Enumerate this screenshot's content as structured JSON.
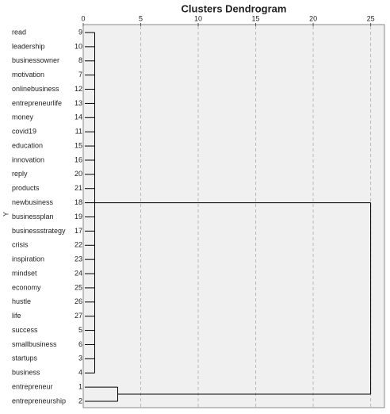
{
  "chart_data": {
    "type": "dendrogram",
    "title": "Clusters Dendrogram",
    "y_label": "Y",
    "labels": [
      "read",
      "leadership",
      "businessowner",
      "motivation",
      "onlinebusiness",
      "entrepreneurlife",
      "money",
      "covid19",
      "education",
      "innovation",
      "reply",
      "products",
      "newbusiness",
      "businessplan",
      "businessstrategy",
      "crisis",
      "inspiration",
      "mindset",
      "economy",
      "hustle",
      "life",
      "success",
      "smallbusiness",
      "startups",
      "business",
      "entrepreneur",
      "entrepreneurship"
    ],
    "case_numbers": [
      9,
      10,
      8,
      7,
      12,
      13,
      14,
      11,
      15,
      16,
      20,
      21,
      18,
      19,
      17,
      22,
      23,
      24,
      25,
      26,
      27,
      5,
      6,
      3,
      4,
      1,
      2
    ],
    "merges": [
      {
        "leaves": [
          0,
          1,
          2,
          3,
          4,
          5,
          6,
          7,
          8,
          9,
          10,
          11,
          12,
          13,
          14,
          15,
          16,
          17,
          18,
          19,
          20,
          21,
          22,
          23,
          24
        ],
        "distance": 1
      },
      {
        "leaves": [
          25,
          26
        ],
        "distance": 3
      },
      {
        "merges": [
          0,
          1
        ],
        "distance": 25
      }
    ],
    "xlim": [
      0,
      26.2
    ],
    "xticks": [
      0,
      5,
      10,
      15,
      20,
      25
    ],
    "grid": true,
    "color": "#000000"
  }
}
